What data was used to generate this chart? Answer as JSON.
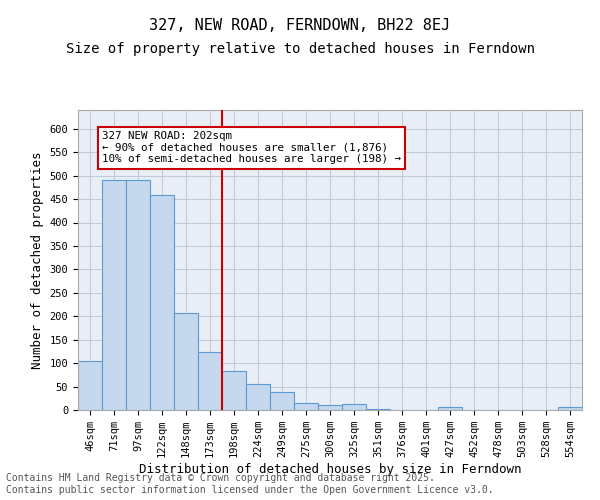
{
  "title1": "327, NEW ROAD, FERNDOWN, BH22 8EJ",
  "title2": "Size of property relative to detached houses in Ferndown",
  "xlabel": "Distribution of detached houses by size in Ferndown",
  "ylabel": "Number of detached properties",
  "categories": [
    "46sqm",
    "71sqm",
    "97sqm",
    "122sqm",
    "148sqm",
    "173sqm",
    "198sqm",
    "224sqm",
    "249sqm",
    "275sqm",
    "300sqm",
    "325sqm",
    "351sqm",
    "376sqm",
    "401sqm",
    "427sqm",
    "452sqm",
    "478sqm",
    "503sqm",
    "528sqm",
    "554sqm"
  ],
  "values": [
    105,
    490,
    490,
    458,
    207,
    123,
    83,
    56,
    38,
    15,
    10,
    13,
    2,
    0,
    0,
    6,
    0,
    0,
    0,
    0,
    6
  ],
  "bar_color": "#c5d8ed",
  "bar_edge_color": "#5b9bd5",
  "vline_x": 6,
  "vline_color": "#cc0000",
  "annotation_text": "327 NEW ROAD: 202sqm\n← 90% of detached houses are smaller (1,876)\n10% of semi-detached houses are larger (198) →",
  "annotation_box_color": "#cc0000",
  "ylim": [
    0,
    640
  ],
  "yticks": [
    0,
    50,
    100,
    150,
    200,
    250,
    300,
    350,
    400,
    450,
    500,
    550,
    600
  ],
  "grid_color": "#c0c8d8",
  "background_color": "#e8eef5",
  "footer_text": "Contains HM Land Registry data © Crown copyright and database right 2025.\nContains public sector information licensed under the Open Government Licence v3.0.",
  "title_fontsize": 11,
  "subtitle_fontsize": 10,
  "tick_fontsize": 7.5,
  "label_fontsize": 9,
  "footer_fontsize": 7
}
